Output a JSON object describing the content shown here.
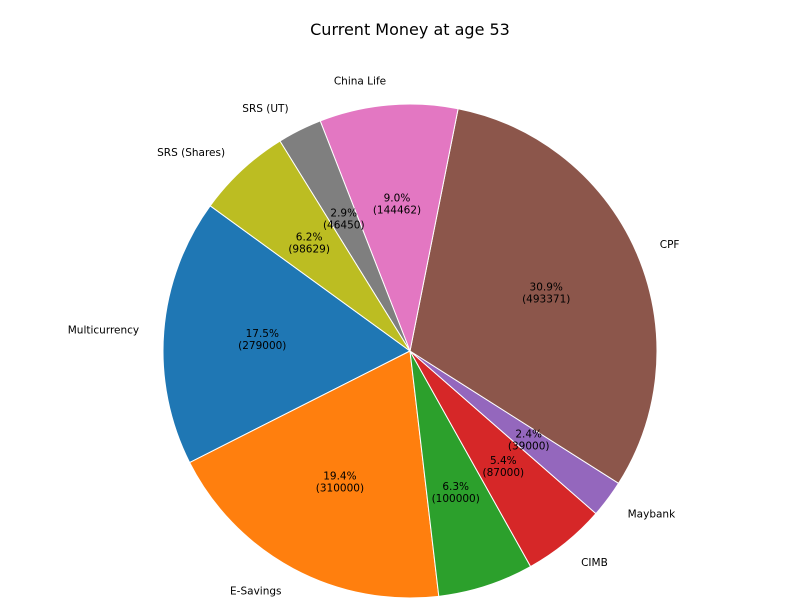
{
  "chart_data": {
    "type": "pie",
    "title": "Current Money at age 53",
    "slices": [
      {
        "label": "Multicurrency",
        "value": 279000,
        "percent": "17.5%",
        "value_text": "(279000)",
        "color": "#1f77b4"
      },
      {
        "label": "E-Savings",
        "value": 310000,
        "percent": "19.4%",
        "value_text": "(310000)",
        "color": "#ff7f0e"
      },
      {
        "label": "",
        "value": 100000,
        "percent": "6.3%",
        "value_text": "(100000)",
        "color": "#2ca02c"
      },
      {
        "label": "CIMB",
        "value": 87000,
        "percent": "5.4%",
        "value_text": "(87000)",
        "color": "#d62728"
      },
      {
        "label": "Maybank",
        "value": 39000,
        "percent": "2.4%",
        "value_text": "(39000)",
        "color": "#9467bd"
      },
      {
        "label": "CPF",
        "value": 493371,
        "percent": "30.9%",
        "value_text": "(493371)",
        "color": "#8c564b"
      },
      {
        "label": "China Life",
        "value": 144462,
        "percent": "9.0%",
        "value_text": "(144462)",
        "color": "#e377c2"
      },
      {
        "label": "SRS (UT)",
        "value": 46450,
        "percent": "2.9%",
        "value_text": "(46450)",
        "color": "#7f7f7f"
      },
      {
        "label": "SRS (Shares)",
        "value": 98629,
        "percent": "6.2%",
        "value_text": "(98629)",
        "color": "#bcbd22"
      }
    ],
    "start_angle_deg": 144,
    "direction": "counterclockwise",
    "legend": "none"
  }
}
